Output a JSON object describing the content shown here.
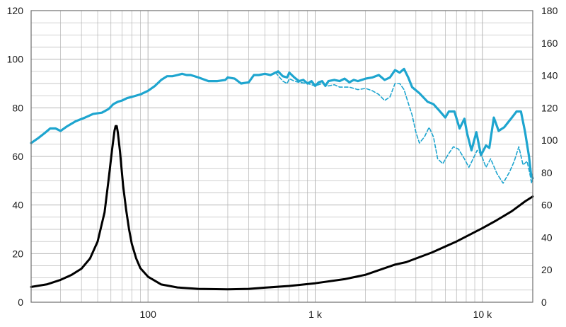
{
  "chart_data": {
    "type": "line",
    "x_scale": "log",
    "xlim": [
      20,
      20000
    ],
    "ylim_left": [
      0,
      120
    ],
    "ylim_right": [
      0,
      180
    ],
    "grid": true,
    "legend": "none",
    "x_tick_labels": [
      {
        "x": 100,
        "label": "100"
      },
      {
        "x": 1000,
        "label": "1 k"
      },
      {
        "x": 10000,
        "label": "10 k"
      }
    ],
    "y_left_ticks": [
      0,
      20,
      40,
      60,
      80,
      100,
      120
    ],
    "y_right_ticks": [
      0,
      20,
      40,
      60,
      80,
      100,
      120,
      140,
      160,
      180
    ],
    "colors": {
      "spl": "#1ea5cf",
      "impedance": "#000000",
      "grid": "#b4b4b4",
      "frame": "#6e6e6e"
    },
    "series": [
      {
        "axis": "left",
        "style": "solid",
        "color": "#1ea5cf",
        "points": [
          [
            20,
            65.5
          ],
          [
            22,
            67.5
          ],
          [
            24,
            69.5
          ],
          [
            26,
            71.5
          ],
          [
            28,
            71.5
          ],
          [
            30,
            70.5
          ],
          [
            33,
            72.5
          ],
          [
            37,
            74.5
          ],
          [
            42,
            76
          ],
          [
            47,
            77.5
          ],
          [
            53,
            78
          ],
          [
            58,
            79.5
          ],
          [
            62,
            81.5
          ],
          [
            66,
            82.5
          ],
          [
            70,
            83
          ],
          [
            75,
            84
          ],
          [
            80,
            84.5
          ],
          [
            90,
            85.5
          ],
          [
            100,
            87
          ],
          [
            110,
            89
          ],
          [
            120,
            91.5
          ],
          [
            130,
            93
          ],
          [
            140,
            93
          ],
          [
            150,
            93.5
          ],
          [
            160,
            94
          ],
          [
            170,
            93.5
          ],
          [
            180,
            93.5
          ],
          [
            200,
            92.5
          ],
          [
            230,
            91
          ],
          [
            260,
            91
          ],
          [
            290,
            91.5
          ],
          [
            300,
            92.5
          ],
          [
            330,
            92
          ],
          [
            360,
            90
          ],
          [
            400,
            90.5
          ],
          [
            430,
            93.5
          ],
          [
            460,
            93.5
          ],
          [
            500,
            94
          ],
          [
            540,
            93.5
          ],
          [
            580,
            94.5
          ],
          [
            600,
            95
          ],
          [
            640,
            93
          ],
          [
            680,
            92.5
          ],
          [
            700,
            94.5
          ],
          [
            750,
            92.5
          ],
          [
            800,
            91
          ],
          [
            850,
            91.5
          ],
          [
            900,
            90
          ],
          [
            950,
            91
          ],
          [
            1000,
            89
          ],
          [
            1050,
            90.5
          ],
          [
            1100,
            91
          ],
          [
            1150,
            89
          ],
          [
            1200,
            91
          ],
          [
            1300,
            91.5
          ],
          [
            1400,
            91
          ],
          [
            1500,
            92
          ],
          [
            1600,
            90.5
          ],
          [
            1700,
            91.5
          ],
          [
            1800,
            91
          ],
          [
            2000,
            92
          ],
          [
            2200,
            92.5
          ],
          [
            2400,
            93.5
          ],
          [
            2600,
            91.5
          ],
          [
            2800,
            92.5
          ],
          [
            3000,
            95.5
          ],
          [
            3200,
            94.5
          ],
          [
            3400,
            96
          ],
          [
            3600,
            92.5
          ],
          [
            3800,
            88.5
          ],
          [
            4200,
            86
          ],
          [
            4700,
            82.5
          ],
          [
            5100,
            81.5
          ],
          [
            5500,
            79
          ],
          [
            6000,
            76
          ],
          [
            6300,
            78.5
          ],
          [
            6800,
            78.5
          ],
          [
            7300,
            71.5
          ],
          [
            7800,
            75.5
          ],
          [
            8100,
            69.5
          ],
          [
            8600,
            62.5
          ],
          [
            9200,
            70
          ],
          [
            9800,
            60.5
          ],
          [
            10500,
            64.5
          ],
          [
            11000,
            63.5
          ],
          [
            11700,
            76
          ],
          [
            12500,
            70.5
          ],
          [
            13500,
            72
          ],
          [
            15000,
            76
          ],
          [
            16000,
            78.5
          ],
          [
            17000,
            78.5
          ],
          [
            18000,
            70
          ],
          [
            19000,
            60
          ],
          [
            19500,
            53
          ],
          [
            20000,
            51
          ]
        ]
      },
      {
        "axis": "left",
        "style": "dashed",
        "color": "#1ea5cf",
        "points": [
          [
            580,
            94.5
          ],
          [
            640,
            91
          ],
          [
            680,
            90
          ],
          [
            700,
            92
          ],
          [
            750,
            91
          ],
          [
            800,
            90.5
          ],
          [
            900,
            90
          ],
          [
            1000,
            89
          ],
          [
            1100,
            90
          ],
          [
            1200,
            89
          ],
          [
            1300,
            89.5
          ],
          [
            1400,
            88.5
          ],
          [
            1600,
            88.5
          ],
          [
            1800,
            87.5
          ],
          [
            2000,
            88
          ],
          [
            2200,
            87
          ],
          [
            2400,
            85.5
          ],
          [
            2600,
            83
          ],
          [
            2800,
            84.5
          ],
          [
            3000,
            90
          ],
          [
            3200,
            90
          ],
          [
            3400,
            87.5
          ],
          [
            3600,
            82
          ],
          [
            3800,
            77
          ],
          [
            4000,
            70
          ],
          [
            4200,
            65.5
          ],
          [
            4500,
            68
          ],
          [
            4800,
            72
          ],
          [
            5100,
            68
          ],
          [
            5400,
            59
          ],
          [
            5800,
            57
          ],
          [
            6200,
            60.5
          ],
          [
            6700,
            64
          ],
          [
            7200,
            63
          ],
          [
            7800,
            59
          ],
          [
            8300,
            55.5
          ],
          [
            8800,
            59
          ],
          [
            9300,
            62.5
          ],
          [
            9800,
            61
          ],
          [
            10500,
            55.5
          ],
          [
            11200,
            59
          ],
          [
            12200,
            53
          ],
          [
            13300,
            49
          ],
          [
            14500,
            53.5
          ],
          [
            15500,
            58
          ],
          [
            16500,
            64
          ],
          [
            17500,
            56.5
          ],
          [
            18500,
            58
          ],
          [
            19200,
            53
          ],
          [
            19700,
            49
          ],
          [
            20000,
            51
          ]
        ]
      },
      {
        "axis": "left",
        "style": "solid",
        "color": "#000000",
        "points": [
          [
            20,
            6.3
          ],
          [
            25,
            7.4
          ],
          [
            30,
            9.2
          ],
          [
            35,
            11.3
          ],
          [
            40,
            13.8
          ],
          [
            45,
            18
          ],
          [
            50,
            25
          ],
          [
            55,
            37
          ],
          [
            58,
            50
          ],
          [
            61,
            63
          ],
          [
            63,
            70.5
          ],
          [
            64,
            72.5
          ],
          [
            65,
            72.5
          ],
          [
            66,
            70
          ],
          [
            68,
            62
          ],
          [
            71,
            48
          ],
          [
            74,
            38
          ],
          [
            77,
            30
          ],
          [
            80,
            24
          ],
          [
            85,
            18
          ],
          [
            90,
            14
          ],
          [
            100,
            10.5
          ],
          [
            120,
            7.3
          ],
          [
            150,
            6.1
          ],
          [
            200,
            5.5
          ],
          [
            300,
            5.3
          ],
          [
            400,
            5.5
          ],
          [
            500,
            6.0
          ],
          [
            700,
            6.7
          ],
          [
            1000,
            7.8
          ],
          [
            1500,
            9.5
          ],
          [
            2000,
            11.3
          ],
          [
            3000,
            15.5
          ],
          [
            3500,
            16.5
          ],
          [
            5000,
            20.5
          ],
          [
            7000,
            25
          ],
          [
            10000,
            30.5
          ],
          [
            12000,
            33.5
          ],
          [
            15000,
            37.5
          ],
          [
            18000,
            41.5
          ],
          [
            20000,
            43.5
          ]
        ]
      }
    ]
  }
}
